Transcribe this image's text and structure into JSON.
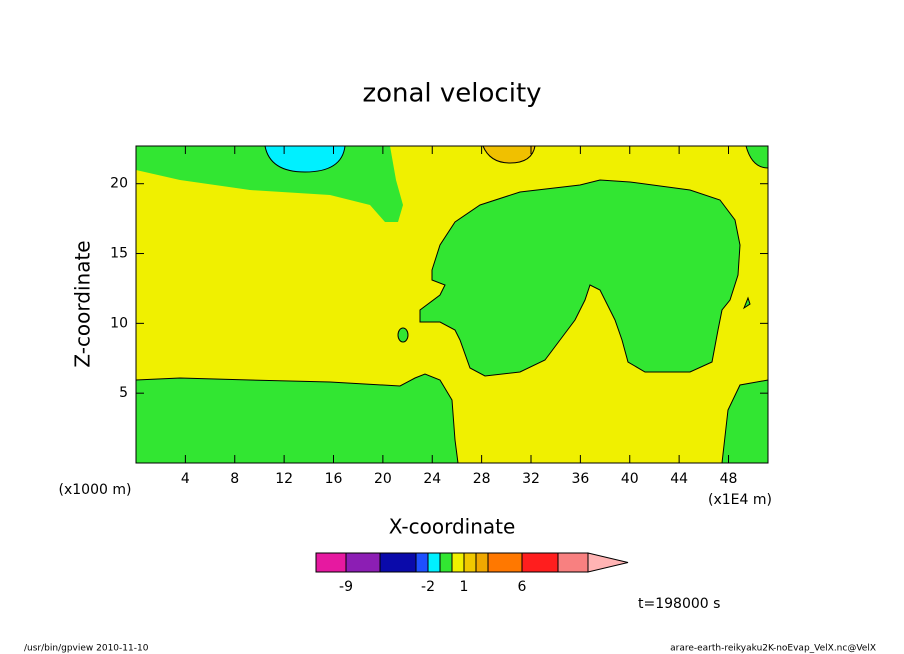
{
  "chart_data": {
    "type": "contour",
    "title": "zonal velocity",
    "x_label": "X-coordinate",
    "y_label": "Z-coordinate",
    "x_unit": "(x1000 m)",
    "x_unit_right": "(x1E4 m)",
    "xlim": [
      0,
      51.2
    ],
    "xticks": [
      4,
      8,
      12,
      16,
      20,
      24,
      28,
      32,
      36,
      40,
      44,
      48
    ],
    "ylim": [
      0,
      22.7
    ],
    "yticks": [
      5,
      10,
      15,
      20
    ],
    "colorbar": {
      "colors": [
        "#e619a0",
        "#8c1eb4",
        "#0a0aaa",
        "#1e50ff",
        "#00f0ff",
        "#32e632",
        "#f0f000",
        "#f0c800",
        "#f0a800",
        "#ff7800",
        "#ff1e1e",
        "#f88080",
        "#ffb4b4"
      ],
      "ticks": [
        -9,
        -2,
        1,
        6
      ]
    },
    "time_label": "t=198000 s",
    "footer_left": "/usr/bin/gpview   2010-11-10",
    "footer_right": "arare-earth-reikyaku2K-noEvap_VelX.nc@VelX"
  }
}
